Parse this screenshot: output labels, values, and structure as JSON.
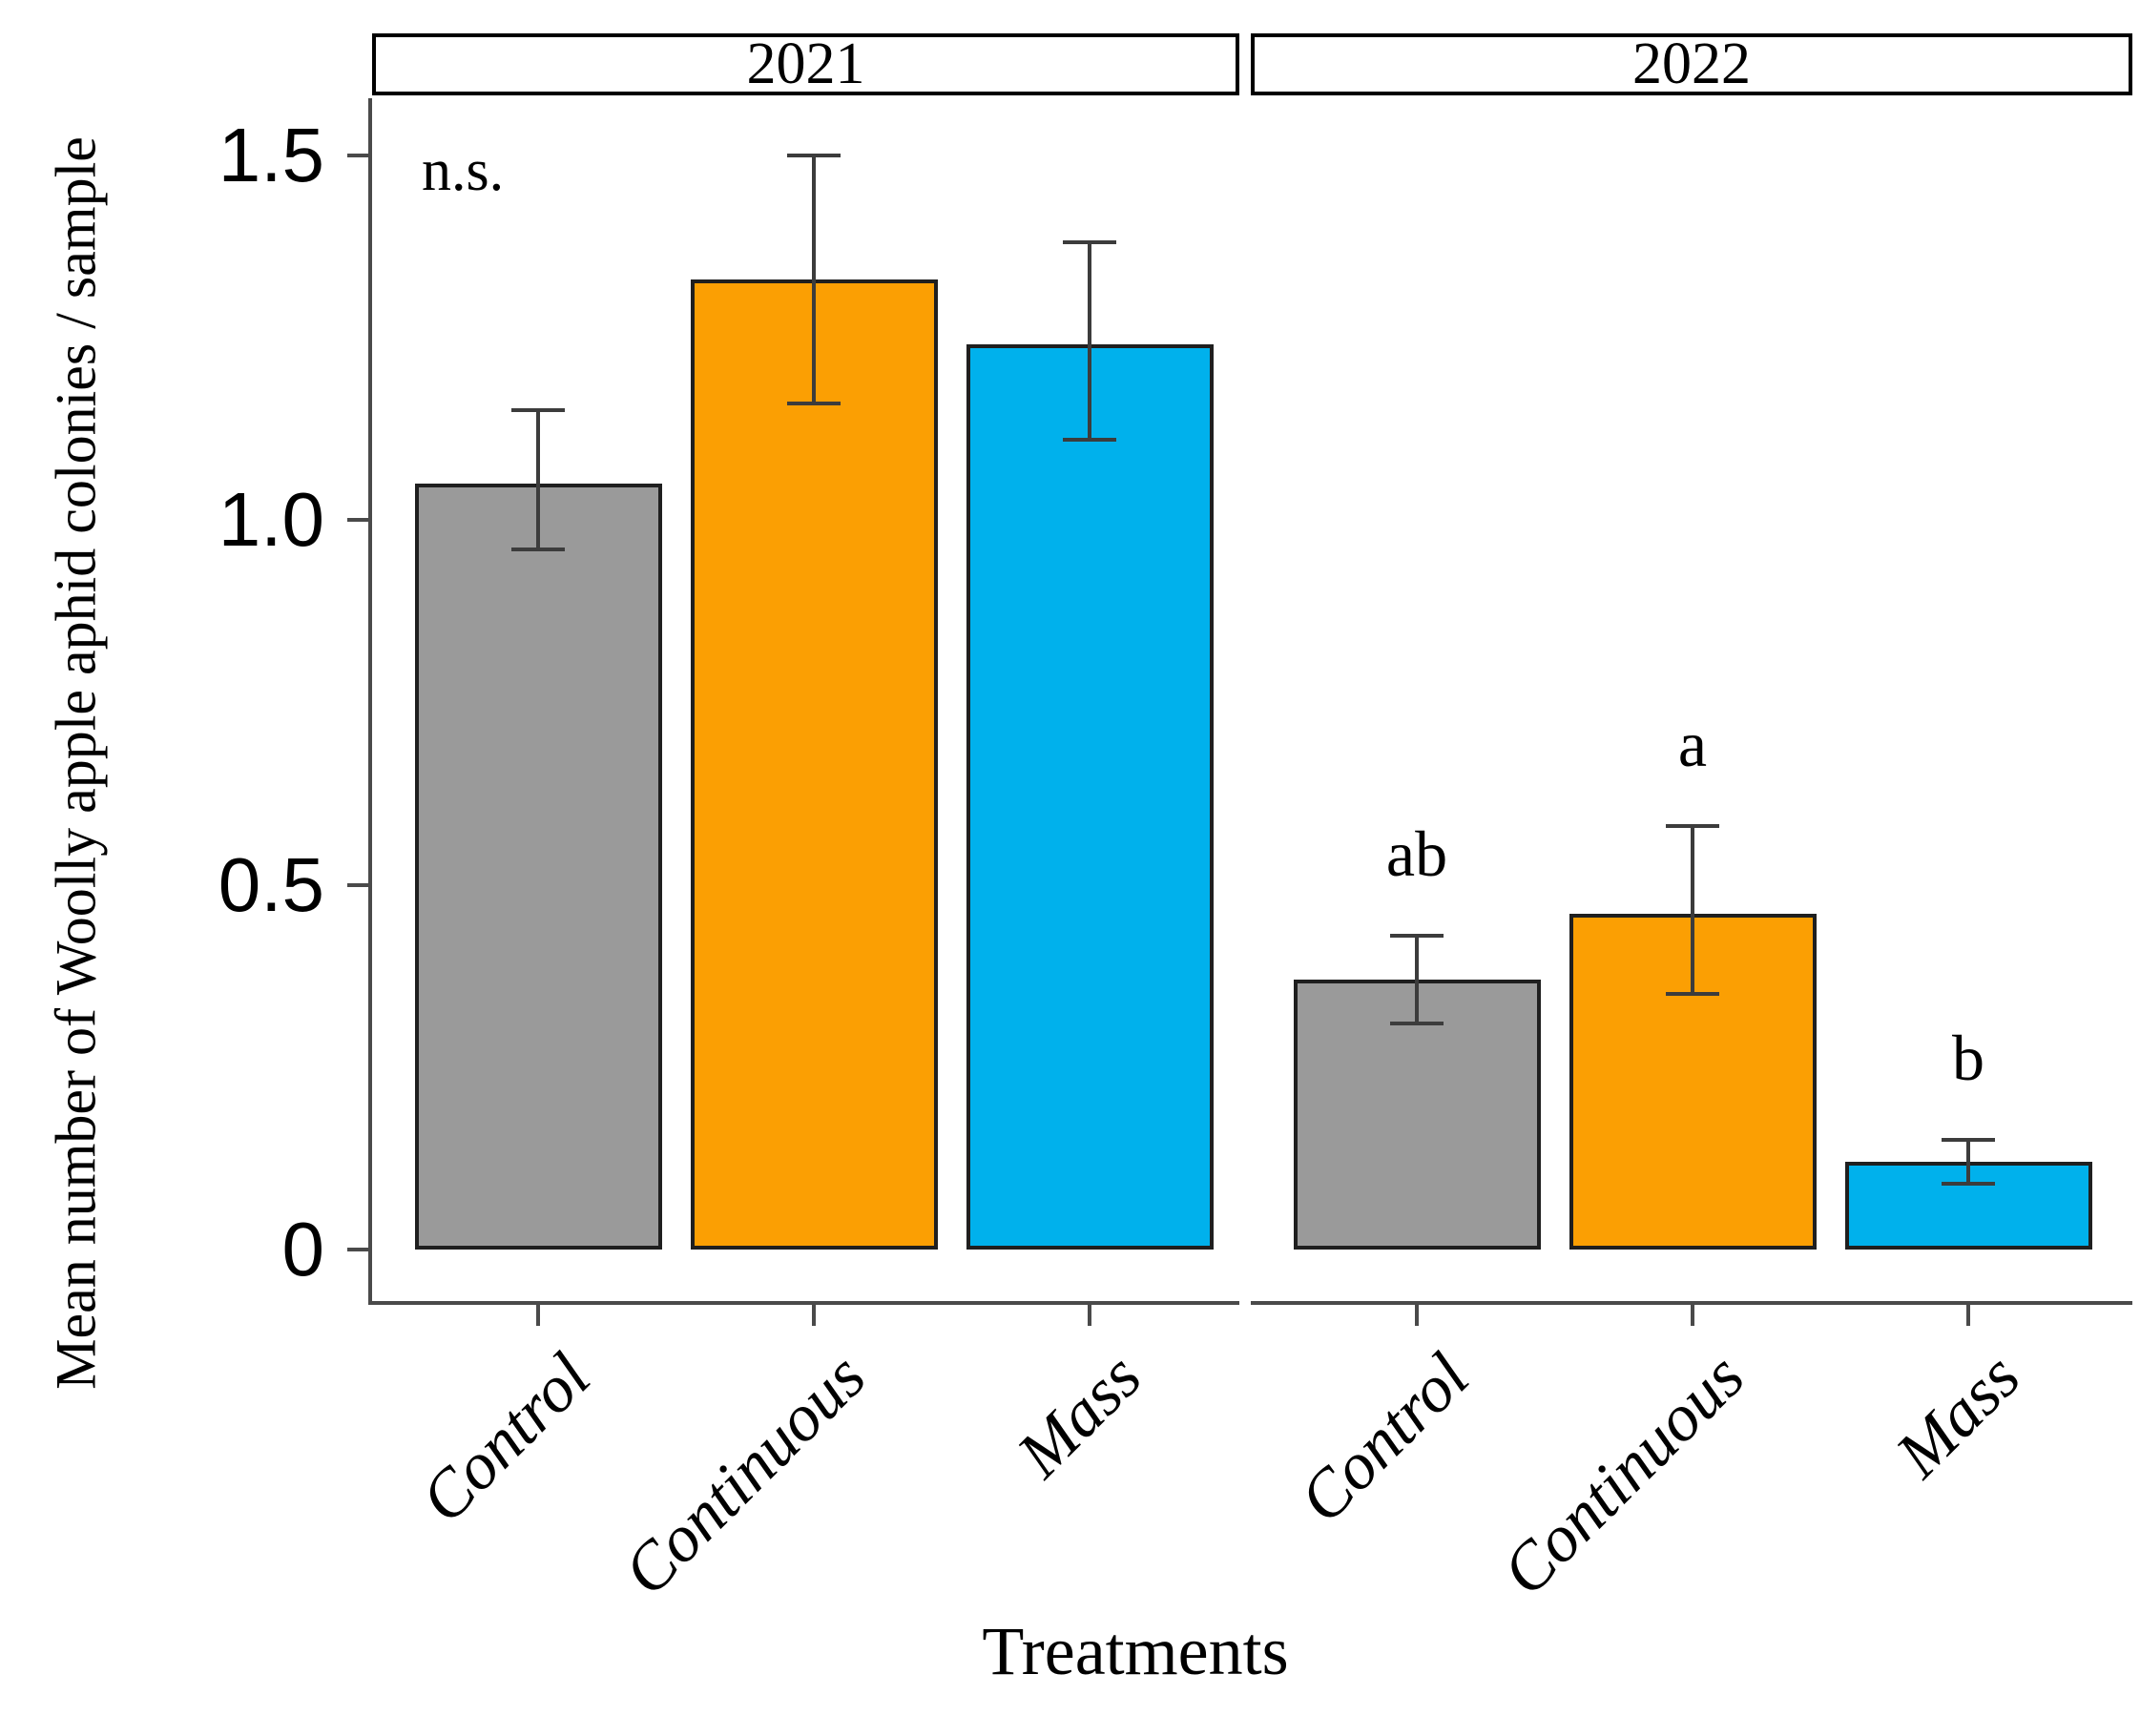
{
  "chart_data": {
    "type": "bar",
    "title": "",
    "xlabel": "Treatments",
    "ylabel": "Mean number of Woolly apple aphid colonies / sample",
    "ylim": [
      0,
      1.58
    ],
    "grid": false,
    "legend": "none",
    "error_bars": true,
    "yticks": [
      {
        "value": 1.5,
        "label": "1.5"
      },
      {
        "value": 1.0,
        "label": "1.0"
      },
      {
        "value": 0.5,
        "label": "0.5"
      },
      {
        "value": 0.0,
        "label": "0"
      }
    ],
    "bar_colors": {
      "Control": "#9A9A9A",
      "Continuous": "#FB9F03",
      "Mass": "#00B1EC"
    },
    "facets": [
      {
        "label": "2021",
        "annotation": "n.s.",
        "categories": [
          "Control",
          "Continuous",
          "Mass"
        ],
        "series": [
          {
            "category": "Control",
            "mean": 1.05,
            "err_low": 0.96,
            "err_high": 1.15,
            "sig_letter": ""
          },
          {
            "category": "Continuous",
            "mean": 1.33,
            "err_low": 1.16,
            "err_high": 1.5,
            "sig_letter": ""
          },
          {
            "category": "Mass",
            "mean": 1.24,
            "err_low": 1.11,
            "err_high": 1.38,
            "sig_letter": ""
          }
        ]
      },
      {
        "label": "2022",
        "annotation": "",
        "categories": [
          "Control",
          "Continuous",
          "Mass"
        ],
        "series": [
          {
            "category": "Control",
            "mean": 0.37,
            "err_low": 0.31,
            "err_high": 0.43,
            "sig_letter": "ab"
          },
          {
            "category": "Continuous",
            "mean": 0.46,
            "err_low": 0.35,
            "err_high": 0.58,
            "sig_letter": "a"
          },
          {
            "category": "Mass",
            "mean": 0.12,
            "err_low": 0.09,
            "err_high": 0.15,
            "sig_letter": "b"
          }
        ]
      }
    ]
  }
}
